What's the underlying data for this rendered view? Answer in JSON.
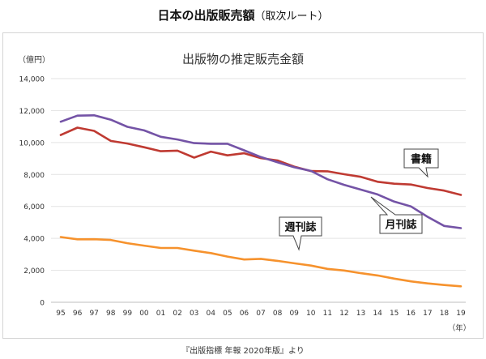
{
  "header": {
    "title": "日本の出版販売額",
    "subtitle": "（取次ルート）"
  },
  "source_note": "『出版指標 年報 2020年版』より",
  "chart_data": {
    "type": "line",
    "title": "出版物の推定販売金額",
    "ylabel": "（億円）",
    "xlabel": "（年）",
    "ylim": [
      0,
      14000
    ],
    "y_ticks": [
      "0",
      "2,000",
      "4,000",
      "6,000",
      "8,000",
      "10,000",
      "12,000",
      "14,000"
    ],
    "categories": [
      "95",
      "96",
      "97",
      "98",
      "99",
      "00",
      "01",
      "02",
      "03",
      "04",
      "05",
      "06",
      "07",
      "08",
      "09",
      "10",
      "11",
      "12",
      "13",
      "14",
      "15",
      "16",
      "17",
      "18",
      "19"
    ],
    "grid": true,
    "legend": "inline callouts",
    "series": [
      {
        "name": "書籍",
        "color": "#bf3a32",
        "values": [
          10470,
          10931,
          10730,
          10100,
          9936,
          9706,
          9456,
          9490,
          9056,
          9429,
          9197,
          9326,
          9026,
          8878,
          8492,
          8213,
          8199,
          8013,
          7851,
          7544,
          7420,
          7370,
          7152,
          6991,
          6723
        ]
      },
      {
        "name": "月刊誌",
        "color": "#7453a6",
        "values": [
          11300,
          11680,
          11700,
          11430,
          10980,
          10760,
          10360,
          10190,
          9960,
          9920,
          9920,
          9510,
          9090,
          8760,
          8450,
          8220,
          7700,
          7350,
          7050,
          6750,
          6300,
          6000,
          5350,
          4780,
          4640
        ]
      },
      {
        "name": "週刊誌",
        "color": "#f6922d",
        "values": [
          4085,
          3940,
          3945,
          3900,
          3700,
          3545,
          3400,
          3400,
          3230,
          3080,
          2860,
          2680,
          2720,
          2590,
          2440,
          2300,
          2090,
          1990,
          1820,
          1680,
          1480,
          1310,
          1180,
          1080,
          1000
        ]
      }
    ]
  }
}
